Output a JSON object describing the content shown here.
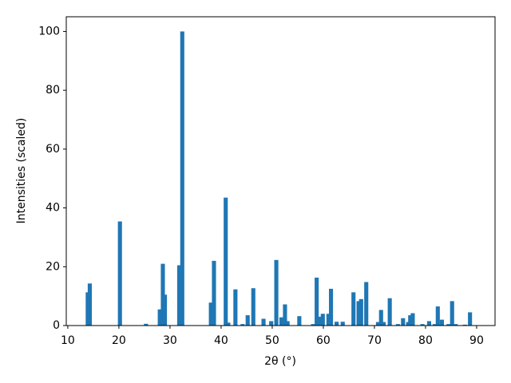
{
  "chart_data": {
    "type": "bar",
    "xlabel": "2θ (°)",
    "ylabel": "Intensities (scaled)",
    "color": "#1f77b4",
    "x": [
      13.9,
      14.3,
      20.2,
      25.3,
      28.0,
      28.6,
      29.0,
      31.8,
      32.4,
      38.0,
      38.6,
      40.9,
      41.4,
      42.8,
      44.2,
      45.2,
      46.3,
      48.3,
      49.8,
      50.8,
      51.8,
      52.5,
      53.0,
      55.3,
      58.0,
      58.7,
      59.3,
      59.9,
      61.0,
      61.5,
      62.6,
      63.8,
      65.9,
      66.9,
      67.4,
      68.4,
      70.7,
      71.3,
      71.8,
      73.0,
      74.6,
      75.6,
      76.6,
      77.0,
      77.5,
      79.4,
      80.7,
      81.8,
      82.4,
      83.2,
      84.5,
      85.2,
      85.9,
      87.7,
      88.7
    ],
    "values": [
      11.3,
      14.3,
      35.4,
      0.6,
      5.5,
      21,
      10.5,
      20.5,
      100,
      7.8,
      22,
      43.5,
      1,
      12.3,
      0.5,
      3.5,
      12.7,
      2.3,
      1.5,
      22.3,
      2.8,
      7.2,
      1.5,
      3.2,
      0.5,
      16.3,
      3,
      4,
      4,
      12.5,
      1.3,
      1.3,
      11.3,
      8.3,
      9,
      14.8,
      1.2,
      5.3,
      1.2,
      9.3,
      0.5,
      2.5,
      1.2,
      3.5,
      4.2,
      0.5,
      1.5,
      0.5,
      6.5,
      2,
      0.5,
      8.3,
      0.5,
      0.3,
      4.5
    ],
    "xlim": [
      9.7,
      93.6
    ],
    "ylim": [
      0,
      105
    ],
    "xticks": [
      10,
      20,
      30,
      40,
      50,
      60,
      70,
      80,
      90
    ],
    "yticks": [
      0,
      20,
      40,
      60,
      80,
      100
    ]
  }
}
